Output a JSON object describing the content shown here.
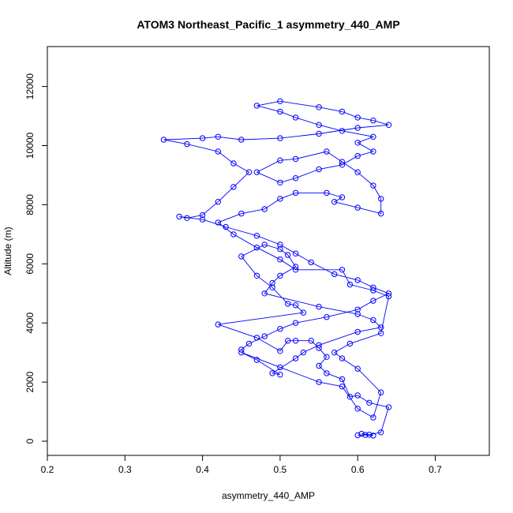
{
  "chart_data": {
    "type": "line",
    "title": "ATOM3 Northeast_Pacific_1 asymmetry_440_AMP",
    "xlabel": "asymmetry_440_AMP",
    "ylabel": "Altitude (m)",
    "xlim": [
      0.2,
      0.75
    ],
    "ylim": [
      0,
      12800
    ],
    "x_ticks": [
      0.2,
      0.3,
      0.4,
      0.5,
      0.6,
      0.7
    ],
    "x_tick_labels": [
      "0.2",
      "0.3",
      "0.4",
      "0.5",
      "0.6",
      "0.7"
    ],
    "y_ticks": [
      0,
      2000,
      4000,
      6000,
      8000,
      10000,
      12000
    ],
    "y_tick_labels": [
      "0",
      "2000",
      "4000",
      "6000",
      "8000",
      "10000",
      "12000"
    ],
    "grid": false,
    "legend": null,
    "series": [
      {
        "color": "#0000ff",
        "marker": "open-circle",
        "points": [
          [
            0.6,
            200
          ],
          [
            0.61,
            210
          ],
          [
            0.62,
            190
          ],
          [
            0.605,
            250
          ],
          [
            0.615,
            220
          ],
          [
            0.63,
            300
          ],
          [
            0.64,
            1150
          ],
          [
            0.615,
            1300
          ],
          [
            0.6,
            1550
          ],
          [
            0.59,
            1500
          ],
          [
            0.58,
            2100
          ],
          [
            0.56,
            2300
          ],
          [
            0.55,
            2550
          ],
          [
            0.56,
            2850
          ],
          [
            0.55,
            3150
          ],
          [
            0.54,
            3400
          ],
          [
            0.52,
            3400
          ],
          [
            0.51,
            3400
          ],
          [
            0.5,
            3050
          ],
          [
            0.47,
            3500
          ],
          [
            0.42,
            3950
          ],
          [
            0.53,
            4350
          ],
          [
            0.52,
            4600
          ],
          [
            0.51,
            4650
          ],
          [
            0.49,
            5200
          ],
          [
            0.47,
            5600
          ],
          [
            0.45,
            6250
          ],
          [
            0.48,
            6650
          ],
          [
            0.5,
            6500
          ],
          [
            0.51,
            6300
          ],
          [
            0.52,
            5900
          ],
          [
            0.5,
            5600
          ],
          [
            0.49,
            5350
          ],
          [
            0.48,
            5000
          ],
          [
            0.55,
            4550
          ],
          [
            0.6,
            4300
          ],
          [
            0.62,
            4100
          ],
          [
            0.63,
            3850
          ],
          [
            0.6,
            3700
          ],
          [
            0.55,
            3250
          ],
          [
            0.53,
            3000
          ],
          [
            0.52,
            2800
          ],
          [
            0.49,
            2300
          ],
          [
            0.5,
            2250
          ],
          [
            0.47,
            2750
          ],
          [
            0.45,
            3000
          ],
          [
            0.5,
            2500
          ],
          [
            0.55,
            2000
          ],
          [
            0.58,
            1850
          ],
          [
            0.6,
            1100
          ],
          [
            0.62,
            800
          ],
          [
            0.63,
            1650
          ],
          [
            0.6,
            2450
          ],
          [
            0.58,
            2800
          ],
          [
            0.57,
            3000
          ],
          [
            0.59,
            3300
          ],
          [
            0.63,
            3650
          ],
          [
            0.64,
            4900
          ],
          [
            0.62,
            5100
          ],
          [
            0.59,
            5300
          ],
          [
            0.58,
            5800
          ],
          [
            0.52,
            5800
          ],
          [
            0.5,
            6150
          ],
          [
            0.47,
            6550
          ],
          [
            0.44,
            7000
          ],
          [
            0.42,
            7400
          ],
          [
            0.45,
            7700
          ],
          [
            0.48,
            7850
          ],
          [
            0.5,
            8200
          ],
          [
            0.52,
            8400
          ],
          [
            0.56,
            8400
          ],
          [
            0.58,
            8250
          ],
          [
            0.57,
            8100
          ],
          [
            0.6,
            7900
          ],
          [
            0.63,
            7700
          ],
          [
            0.63,
            8200
          ],
          [
            0.62,
            8650
          ],
          [
            0.6,
            9100
          ],
          [
            0.58,
            9450
          ],
          [
            0.56,
            9800
          ],
          [
            0.52,
            9550
          ],
          [
            0.5,
            9500
          ],
          [
            0.47,
            9100
          ],
          [
            0.5,
            8750
          ],
          [
            0.52,
            8900
          ],
          [
            0.55,
            9200
          ],
          [
            0.58,
            9350
          ],
          [
            0.6,
            9650
          ],
          [
            0.62,
            9800
          ],
          [
            0.6,
            10100
          ],
          [
            0.62,
            10300
          ],
          [
            0.58,
            10500
          ],
          [
            0.55,
            10700
          ],
          [
            0.52,
            10950
          ],
          [
            0.5,
            11150
          ],
          [
            0.47,
            11350
          ],
          [
            0.5,
            11500
          ],
          [
            0.55,
            11300
          ],
          [
            0.58,
            11150
          ],
          [
            0.6,
            10950
          ],
          [
            0.62,
            10850
          ],
          [
            0.64,
            10700
          ],
          [
            0.6,
            10600
          ],
          [
            0.55,
            10400
          ],
          [
            0.5,
            10250
          ],
          [
            0.45,
            10200
          ],
          [
            0.42,
            10300
          ],
          [
            0.4,
            10250
          ],
          [
            0.35,
            10200
          ],
          [
            0.38,
            10050
          ],
          [
            0.42,
            9800
          ],
          [
            0.44,
            9400
          ],
          [
            0.46,
            9100
          ],
          [
            0.44,
            8600
          ],
          [
            0.42,
            8100
          ],
          [
            0.4,
            7650
          ],
          [
            0.38,
            7550
          ],
          [
            0.37,
            7600
          ],
          [
            0.4,
            7500
          ],
          [
            0.43,
            7250
          ],
          [
            0.47,
            6950
          ],
          [
            0.5,
            6650
          ],
          [
            0.52,
            6350
          ],
          [
            0.54,
            6050
          ],
          [
            0.57,
            5650
          ],
          [
            0.6,
            5450
          ],
          [
            0.62,
            5200
          ],
          [
            0.64,
            5000
          ],
          [
            0.62,
            4750
          ],
          [
            0.6,
            4450
          ],
          [
            0.56,
            4200
          ],
          [
            0.52,
            4000
          ],
          [
            0.5,
            3800
          ],
          [
            0.48,
            3550
          ],
          [
            0.46,
            3300
          ],
          [
            0.45,
            3100
          ]
        ]
      }
    ]
  }
}
